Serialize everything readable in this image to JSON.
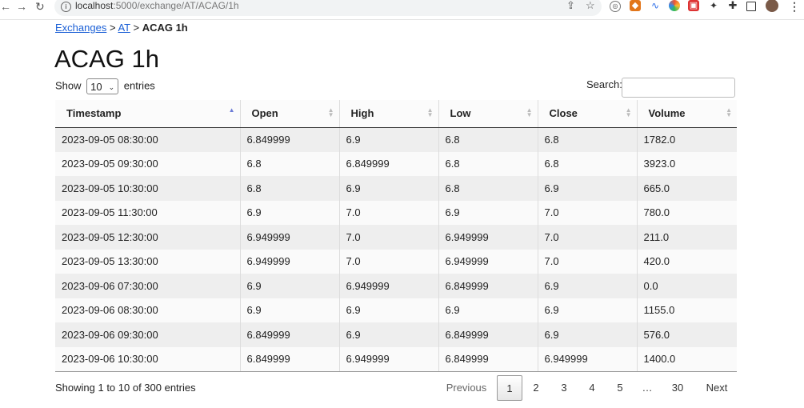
{
  "browser": {
    "url_host": "localhost",
    "url_path": ":5000/exchange/AT/ACAG/1h"
  },
  "breadcrumb": {
    "link1": "Exchanges",
    "sep1": " > ",
    "link2": "AT",
    "sep2": " > ",
    "current": "ACAG 1h"
  },
  "page_title": "ACAG 1h",
  "length_control": {
    "prefix": "Show",
    "value": "10",
    "suffix": "entries"
  },
  "search": {
    "label": "Search:",
    "value": ""
  },
  "table": {
    "columns": [
      "Timestamp",
      "Open",
      "High",
      "Low",
      "Close",
      "Volume"
    ],
    "sorted_column": "Timestamp",
    "rows": [
      [
        "2023-09-05 08:30:00",
        "6.849999",
        "6.9",
        "6.8",
        "6.8",
        "1782.0"
      ],
      [
        "2023-09-05 09:30:00",
        "6.8",
        "6.849999",
        "6.8",
        "6.8",
        "3923.0"
      ],
      [
        "2023-09-05 10:30:00",
        "6.8",
        "6.9",
        "6.8",
        "6.9",
        "665.0"
      ],
      [
        "2023-09-05 11:30:00",
        "6.9",
        "7.0",
        "6.9",
        "7.0",
        "780.0"
      ],
      [
        "2023-09-05 12:30:00",
        "6.949999",
        "7.0",
        "6.949999",
        "7.0",
        "211.0"
      ],
      [
        "2023-09-05 13:30:00",
        "6.949999",
        "7.0",
        "6.949999",
        "7.0",
        "420.0"
      ],
      [
        "2023-09-06 07:30:00",
        "6.9",
        "6.949999",
        "6.849999",
        "6.9",
        "0.0"
      ],
      [
        "2023-09-06 08:30:00",
        "6.9",
        "6.9",
        "6.9",
        "6.9",
        "1155.0"
      ],
      [
        "2023-09-06 09:30:00",
        "6.849999",
        "6.9",
        "6.849999",
        "6.9",
        "576.0"
      ],
      [
        "2023-09-06 10:30:00",
        "6.849999",
        "6.949999",
        "6.849999",
        "6.949999",
        "1400.0"
      ]
    ]
  },
  "table_info": "Showing 1 to 10 of 300 entries",
  "pagination": {
    "previous": "Previous",
    "pages": [
      "1",
      "2",
      "3",
      "4",
      "5",
      "…",
      "30"
    ],
    "current_page": "1",
    "next": "Next"
  }
}
